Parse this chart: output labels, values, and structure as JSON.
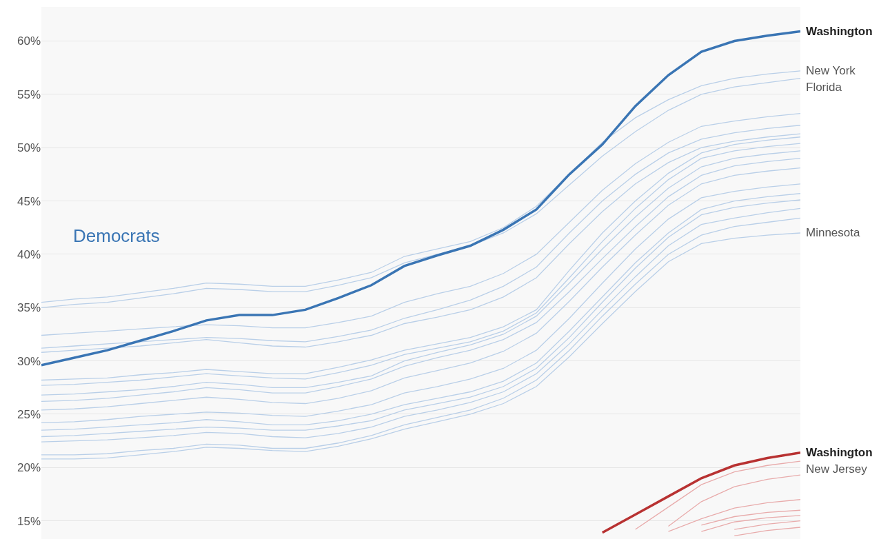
{
  "chart_data": {
    "type": "line",
    "categories": [
      null,
      null,
      null,
      null,
      null,
      null,
      null,
      null,
      null,
      null,
      null,
      null,
      null,
      null,
      null,
      null,
      null,
      null,
      null,
      null,
      null,
      null,
      null,
      null
    ],
    "ylim": [
      13.3,
      63.2
    ],
    "yticks": [
      {
        "value": 15,
        "label": "15%"
      },
      {
        "value": 20,
        "label": "20%"
      },
      {
        "value": 25,
        "label": "25%"
      },
      {
        "value": 30,
        "label": "30%"
      },
      {
        "value": 35,
        "label": "35%"
      },
      {
        "value": 40,
        "label": "40%"
      },
      {
        "value": 45,
        "label": "45%"
      },
      {
        "value": 50,
        "label": "50%"
      },
      {
        "value": 55,
        "label": "55%"
      },
      {
        "value": 60,
        "label": "60%"
      }
    ],
    "grid": "y",
    "legend": false,
    "tick_labels": "y",
    "annotations": [
      "Democrats"
    ],
    "series": [
      {
        "name": "New York",
        "color": "#b9cfe8",
        "values": [
          35.5,
          35.8,
          36.0,
          36.4,
          36.8,
          37.3,
          37.2,
          37.0,
          37.0,
          37.6,
          38.3,
          39.8,
          40.5,
          41.2,
          42.5,
          44.5,
          47.5,
          50.5,
          52.8,
          54.5,
          55.8,
          56.5,
          56.9,
          57.2
        ]
      },
      {
        "name": "Florida",
        "color": "#b9cfe8",
        "values": [
          35.0,
          35.3,
          35.5,
          35.9,
          36.3,
          36.8,
          36.7,
          36.5,
          36.5,
          37.1,
          37.8,
          39.2,
          40.0,
          40.8,
          42.0,
          43.8,
          46.5,
          49.2,
          51.5,
          53.5,
          55.0,
          55.7,
          56.1,
          56.5
        ]
      },
      {
        "color": "#b9cfe8",
        "values": [
          32.4,
          32.6,
          32.8,
          33.0,
          33.2,
          33.4,
          33.3,
          33.1,
          33.1,
          33.6,
          34.2,
          35.5,
          36.3,
          37.0,
          38.2,
          40.0,
          43.0,
          46.0,
          48.5,
          50.5,
          52.0,
          52.5,
          52.9,
          53.2
        ]
      },
      {
        "color": "#b9cfe8",
        "values": [
          31.2,
          31.4,
          31.6,
          31.8,
          32.0,
          32.2,
          32.1,
          31.9,
          31.8,
          32.3,
          32.9,
          34.0,
          34.8,
          35.7,
          37.0,
          38.8,
          42.0,
          45.0,
          47.5,
          49.5,
          50.8,
          51.4,
          51.8,
          52.1
        ]
      },
      {
        "color": "#b9cfe8",
        "values": [
          30.8,
          31.0,
          31.2,
          31.4,
          31.7,
          32.0,
          31.7,
          31.4,
          31.3,
          31.8,
          32.4,
          33.5,
          34.1,
          34.8,
          36.0,
          37.8,
          41.0,
          44.0,
          46.6,
          48.6,
          50.0,
          50.6,
          51.0,
          51.3
        ]
      },
      {
        "color": "#b9cfe8",
        "values": [
          28.2,
          28.3,
          28.4,
          28.7,
          28.9,
          29.2,
          29.0,
          28.8,
          28.8,
          29.4,
          30.1,
          31.0,
          31.6,
          32.2,
          33.2,
          34.8,
          38.5,
          42.0,
          45.0,
          47.6,
          49.5,
          50.3,
          50.7,
          51.0
        ]
      },
      {
        "color": "#b9cfe8",
        "values": [
          27.7,
          27.8,
          28.0,
          28.2,
          28.5,
          28.8,
          28.6,
          28.4,
          28.3,
          28.9,
          29.6,
          30.6,
          31.2,
          31.8,
          32.8,
          34.5,
          37.8,
          41.2,
          44.3,
          47.0,
          49.0,
          49.7,
          50.1,
          50.4
        ]
      },
      {
        "color": "#b9cfe8",
        "values": [
          26.8,
          26.9,
          27.1,
          27.3,
          27.6,
          28.0,
          27.8,
          27.5,
          27.5,
          28.0,
          28.6,
          30.0,
          30.8,
          31.5,
          32.5,
          34.2,
          37.3,
          40.5,
          43.5,
          46.2,
          48.2,
          49.0,
          49.4,
          49.7
        ]
      },
      {
        "color": "#b9cfe8",
        "values": [
          26.2,
          26.3,
          26.5,
          26.8,
          27.1,
          27.5,
          27.3,
          27.0,
          27.0,
          27.6,
          28.3,
          29.5,
          30.3,
          31.0,
          32.0,
          33.6,
          36.5,
          39.6,
          42.6,
          45.4,
          47.4,
          48.3,
          48.7,
          49.0
        ]
      },
      {
        "color": "#b9cfe8",
        "values": [
          25.4,
          25.5,
          25.7,
          26.0,
          26.3,
          26.6,
          26.4,
          26.1,
          26.0,
          26.5,
          27.2,
          28.4,
          29.1,
          29.8,
          30.9,
          32.6,
          35.6,
          38.8,
          41.8,
          44.6,
          46.6,
          47.4,
          47.8,
          48.1
        ]
      },
      {
        "color": "#b9cfe8",
        "values": [
          24.2,
          24.3,
          24.5,
          24.8,
          25.0,
          25.2,
          25.1,
          24.9,
          24.8,
          25.3,
          25.9,
          27.0,
          27.6,
          28.3,
          29.3,
          31.0,
          34.0,
          37.3,
          40.5,
          43.3,
          45.3,
          45.9,
          46.3,
          46.6
        ]
      },
      {
        "color": "#b9cfe8",
        "values": [
          23.5,
          23.6,
          23.8,
          24.0,
          24.2,
          24.5,
          24.3,
          24.0,
          24.0,
          24.4,
          25.0,
          25.9,
          26.5,
          27.1,
          28.1,
          29.8,
          32.8,
          36.0,
          39.2,
          42.0,
          44.2,
          45.0,
          45.4,
          45.7
        ]
      },
      {
        "color": "#b9cfe8",
        "values": [
          22.9,
          23.0,
          23.2,
          23.4,
          23.6,
          23.8,
          23.7,
          23.5,
          23.5,
          23.9,
          24.4,
          25.4,
          26.0,
          26.6,
          27.6,
          29.3,
          32.2,
          35.5,
          38.7,
          41.6,
          43.7,
          44.4,
          44.8,
          45.1
        ]
      },
      {
        "color": "#b9cfe8",
        "values": [
          22.4,
          22.5,
          22.6,
          22.8,
          23.0,
          23.3,
          23.2,
          22.9,
          22.8,
          23.2,
          23.8,
          24.8,
          25.4,
          26.1,
          27.1,
          28.8,
          31.6,
          34.8,
          37.9,
          40.8,
          42.8,
          43.4,
          43.9,
          44.3
        ]
      },
      {
        "color": "#b9cfe8",
        "values": [
          21.2,
          21.2,
          21.3,
          21.6,
          21.8,
          22.2,
          22.1,
          21.8,
          21.8,
          22.3,
          23.0,
          24.0,
          24.7,
          25.4,
          26.5,
          28.2,
          31.0,
          34.2,
          37.2,
          40.0,
          41.8,
          42.6,
          43.0,
          43.4
        ]
      },
      {
        "name": "Minnesota",
        "color": "#b9cfe8",
        "values": [
          20.8,
          20.8,
          20.9,
          21.2,
          21.5,
          21.9,
          21.8,
          21.6,
          21.5,
          22.0,
          22.7,
          23.6,
          24.3,
          25.0,
          26.0,
          27.6,
          30.4,
          33.5,
          36.5,
          39.3,
          41.0,
          41.5,
          41.8,
          42.0
        ]
      },
      {
        "name": "Washington",
        "color": "#3a75b4",
        "values": [
          29.6,
          30.3,
          31.0,
          31.9,
          32.8,
          33.8,
          34.3,
          34.3,
          34.8,
          35.9,
          37.1,
          38.9,
          39.9,
          40.8,
          42.3,
          44.2,
          47.5,
          50.3,
          53.9,
          56.8,
          59.0,
          60.0,
          60.5,
          60.9
        ]
      },
      {
        "name": "New Jersey",
        "color": "#e8abab",
        "values": [
          null,
          null,
          null,
          null,
          null,
          null,
          null,
          null,
          null,
          null,
          null,
          null,
          null,
          null,
          null,
          null,
          null,
          null,
          14.2,
          16.3,
          18.4,
          19.6,
          20.2,
          20.6
        ]
      },
      {
        "color": "#e8abab",
        "values": [
          null,
          null,
          null,
          null,
          null,
          null,
          null,
          null,
          null,
          null,
          null,
          null,
          null,
          null,
          null,
          null,
          null,
          null,
          null,
          14.5,
          16.8,
          18.2,
          18.9,
          19.3
        ]
      },
      {
        "color": "#e8abab",
        "values": [
          null,
          null,
          null,
          null,
          null,
          null,
          null,
          null,
          null,
          null,
          null,
          null,
          null,
          null,
          null,
          null,
          null,
          null,
          null,
          14.0,
          15.2,
          16.2,
          16.7,
          17.0
        ]
      },
      {
        "color": "#e8abab",
        "values": [
          null,
          null,
          null,
          null,
          null,
          null,
          null,
          null,
          null,
          null,
          null,
          null,
          null,
          null,
          null,
          null,
          null,
          null,
          null,
          null,
          14.6,
          15.4,
          15.8,
          16.0
        ]
      },
      {
        "color": "#e8abab",
        "values": [
          null,
          null,
          null,
          null,
          null,
          null,
          null,
          null,
          null,
          null,
          null,
          null,
          null,
          null,
          null,
          null,
          null,
          null,
          null,
          null,
          14.0,
          14.9,
          15.3,
          15.5
        ]
      },
      {
        "color": "#e8abab",
        "values": [
          null,
          null,
          null,
          null,
          null,
          null,
          null,
          null,
          null,
          null,
          null,
          null,
          null,
          null,
          null,
          null,
          null,
          null,
          null,
          null,
          null,
          14.2,
          14.7,
          15.0
        ]
      },
      {
        "color": "#e8abab",
        "values": [
          null,
          null,
          null,
          null,
          null,
          null,
          null,
          null,
          null,
          null,
          null,
          null,
          null,
          null,
          null,
          null,
          null,
          null,
          null,
          null,
          null,
          13.6,
          14.1,
          14.4
        ]
      },
      {
        "name": "Washington",
        "color": "#b83232",
        "values": [
          null,
          null,
          null,
          null,
          null,
          null,
          null,
          null,
          null,
          null,
          null,
          null,
          null,
          null,
          null,
          null,
          null,
          13.9,
          15.6,
          17.3,
          19.0,
          20.2,
          20.9,
          21.4
        ]
      }
    ]
  }
}
